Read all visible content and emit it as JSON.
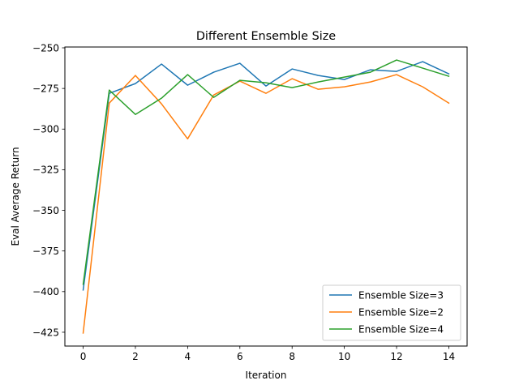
{
  "chart_data": {
    "type": "line",
    "title": "Different Ensemble Size",
    "xlabel": "Iteration",
    "ylabel": "Eval Average Return",
    "xlim": [
      -0.7,
      14.7
    ],
    "ylim": [
      -433.5,
      -249.5
    ],
    "xticks": [
      0,
      2,
      4,
      6,
      8,
      10,
      12,
      14
    ],
    "yticks": [
      -425,
      -400,
      -375,
      -350,
      -325,
      -300,
      -275,
      -250
    ],
    "xtick_labels": [
      "0",
      "2",
      "4",
      "6",
      "8",
      "10",
      "12",
      "14"
    ],
    "ytick_labels": [
      "−425",
      "−400",
      "−375",
      "−350",
      "−325",
      "−300",
      "−275",
      "−250"
    ],
    "grid": false,
    "legend_position": "lower-right",
    "x": [
      0,
      1,
      2,
      3,
      4,
      5,
      6,
      7,
      8,
      9,
      10,
      11,
      12,
      13,
      14
    ],
    "series": [
      {
        "name": "Ensemble Size=3",
        "color": "#1f77b4",
        "values": [
          -399,
          -278,
          -272,
          -260,
          -273,
          -265,
          -259.5,
          -273.5,
          -263,
          -267,
          -269.5,
          -263.5,
          -264.5,
          -258.5,
          -266
        ]
      },
      {
        "name": "Ensemble Size=2",
        "color": "#ff7f0e",
        "values": [
          -425.5,
          -284,
          -267,
          -284.5,
          -306,
          -279,
          -270.5,
          -278,
          -269,
          -275.5,
          -274,
          -271,
          -266.5,
          -274,
          -284
        ]
      },
      {
        "name": "Ensemble Size=4",
        "color": "#2ca02c",
        "values": [
          -395.5,
          -276,
          -291,
          -281,
          -266.5,
          -280.5,
          -270,
          -271.5,
          -274.5,
          -271,
          -268,
          -265,
          -257.5,
          -262.5,
          -267.5
        ]
      }
    ]
  }
}
